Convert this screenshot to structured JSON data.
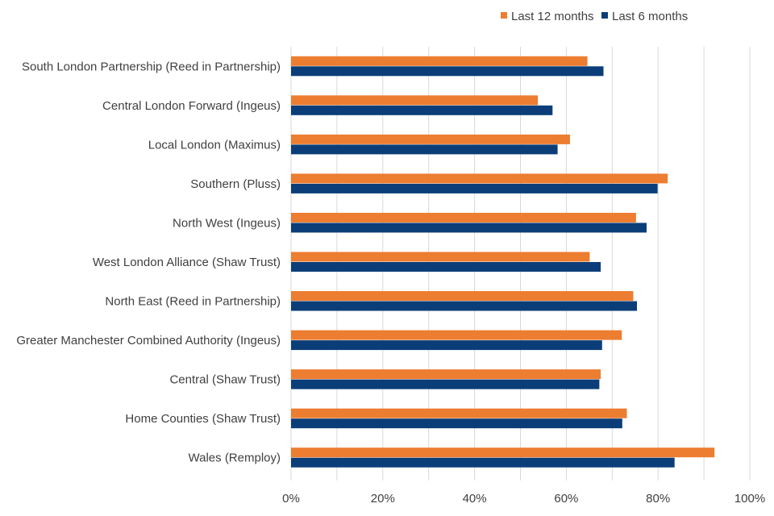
{
  "chart_data": {
    "type": "bar",
    "orientation": "horizontal",
    "title": "",
    "xlabel": "",
    "ylabel": "",
    "xlim": [
      0,
      100
    ],
    "x_ticks": [
      "0%",
      "20%",
      "40%",
      "60%",
      "80%",
      "100%"
    ],
    "grid": true,
    "legend_placement": "top-right",
    "categories": [
      "South London Partnership (Reed in Partnership)",
      "Central London Forward (Ingeus)",
      "Local London (Maximus)",
      "Southern (Pluss)",
      "North West (Ingeus)",
      "West London Alliance (Shaw Trust)",
      "North East (Reed in Partnership)",
      "Greater Manchester Combined Authority (Ingeus)",
      "Central (Shaw Trust)",
      "Home Counties (Shaw Trust)",
      "Wales (Remploy)"
    ],
    "series": [
      {
        "name": "Last 12 months",
        "color": "#ED7D31",
        "values": [
          64.6,
          53.8,
          60.8,
          82.1,
          75.2,
          65.1,
          74.6,
          72.1,
          67.5,
          73.2,
          92.3
        ]
      },
      {
        "name": "Last 6 months",
        "color": "#0B3E78",
        "values": [
          68.1,
          57.0,
          58.1,
          79.9,
          77.5,
          67.5,
          75.4,
          67.8,
          67.2,
          72.2,
          83.6
        ]
      }
    ]
  }
}
